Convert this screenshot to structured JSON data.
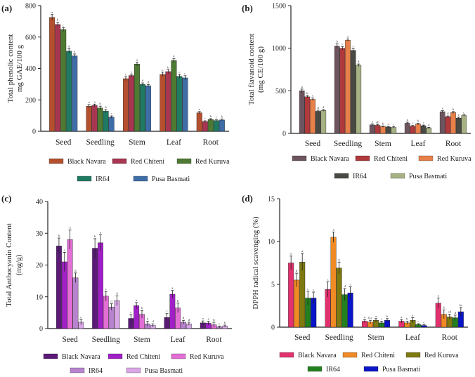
{
  "chart_data": [
    {
      "type": "bar",
      "panel": "(a)",
      "ylabel_lines": [
        "Total phenolic content",
        "mg GAE/100 g"
      ],
      "ylim": [
        0,
        800
      ],
      "yticks": [
        0,
        200,
        400,
        600,
        800
      ],
      "categories": [
        "Seed",
        "Seedling",
        "Stem",
        "Leaf",
        "Root"
      ],
      "series": [
        {
          "name": "Black Navara",
          "color": "#B5502E",
          "values": [
            725,
            160,
            335,
            362,
            118
          ],
          "errors": [
            18,
            10,
            12,
            14,
            8
          ]
        },
        {
          "name": "Red Chiteni",
          "color": "#A83650",
          "values": [
            680,
            165,
            355,
            380,
            62
          ],
          "errors": [
            15,
            8,
            10,
            12,
            5
          ]
        },
        {
          "name": "Red Kuruva",
          "color": "#4E7A33",
          "values": [
            648,
            148,
            428,
            450,
            75
          ],
          "errors": [
            12,
            12,
            12,
            14,
            6
          ]
        },
        {
          "name": "IR64",
          "color": "#1F7A62",
          "values": [
            510,
            128,
            298,
            350,
            68
          ],
          "errors": [
            15,
            10,
            10,
            12,
            5
          ]
        },
        {
          "name": "Pusa Basmati",
          "color": "#3E6DA8",
          "values": [
            480,
            90,
            290,
            340,
            72
          ],
          "errors": [
            12,
            8,
            8,
            14,
            6
          ]
        }
      ],
      "sig": [
        [
          "a",
          "b",
          "c",
          "d",
          "e"
        ],
        [
          "a",
          "a",
          "b",
          "b",
          "c"
        ],
        [
          "c",
          "c",
          "a",
          "d",
          "d"
        ],
        [
          "c",
          "b",
          "a",
          "c",
          "c"
        ],
        [
          "a",
          "c",
          "b",
          "c",
          "b"
        ]
      ]
    },
    {
      "type": "bar",
      "panel": "(b)",
      "ylabel_lines": [
        "Total flavanoid content",
        "(mg CE/100 g)"
      ],
      "ylim": [
        0,
        1500
      ],
      "yticks": [
        0,
        500,
        1000,
        1500
      ],
      "categories": [
        "Seed",
        "Seedling",
        "Stem",
        "Leaf",
        "Root"
      ],
      "series": [
        {
          "name": "Black Navara",
          "color": "#6D5560",
          "values": [
            500,
            1025,
            100,
            120,
            255
          ],
          "errors": [
            20,
            25,
            10,
            12,
            12
          ]
        },
        {
          "name": "Red Chiteni",
          "color": "#B0393C",
          "values": [
            430,
            1000,
            95,
            85,
            195
          ],
          "errors": [
            15,
            20,
            10,
            8,
            10
          ]
        },
        {
          "name": "Red Kuruva",
          "color": "#E8804A",
          "values": [
            400,
            1095,
            80,
            110,
            245
          ],
          "errors": [
            15,
            15,
            8,
            10,
            12
          ]
        },
        {
          "name": "IR64",
          "color": "#4A4A44",
          "values": [
            260,
            975,
            75,
            90,
            180
          ],
          "errors": [
            12,
            18,
            8,
            8,
            10
          ]
        },
        {
          "name": "Pusa Basmati",
          "color": "#A6B284",
          "values": [
            270,
            800,
            70,
            65,
            210
          ],
          "errors": [
            10,
            15,
            8,
            6,
            10
          ]
        }
      ],
      "sig": [
        [
          "a",
          "b",
          "c",
          "d",
          "d"
        ],
        [
          "b",
          "c",
          "a",
          "c",
          "d"
        ],
        [
          "a",
          "ab",
          "b",
          "c",
          "c"
        ],
        [
          "a",
          "c",
          "b",
          "c",
          "d"
        ],
        [
          "a",
          "d",
          "b",
          "e",
          "c"
        ]
      ]
    },
    {
      "type": "bar",
      "panel": "(c)",
      "ylabel_lines": [
        "Total Anthocyanin Content",
        "(mg/g)"
      ],
      "ylim": [
        0,
        40
      ],
      "yticks": [
        0,
        10,
        20,
        30,
        40
      ],
      "categories": [
        "Seed",
        "Seedling",
        "Stem",
        "Leaf",
        "Root"
      ],
      "series": [
        {
          "name": "Black Navara",
          "color": "#5B1A78",
          "values": [
            26,
            25.3,
            3.2,
            3.5,
            1.8
          ],
          "errors": [
            2.5,
            3.0,
            1.2,
            1.2,
            0.6
          ]
        },
        {
          "name": "Red Chiteni",
          "color": "#A11FC6",
          "values": [
            21,
            27,
            7.2,
            10.8,
            1.7
          ],
          "errors": [
            3.0,
            2.5,
            1.0,
            1.2,
            0.6
          ]
        },
        {
          "name": "Red Kuruva",
          "color": "#E36ED5",
          "values": [
            28,
            10.2,
            4.5,
            6.5,
            1.2
          ],
          "errors": [
            3.0,
            1.5,
            1.2,
            1.5,
            0.8
          ]
        },
        {
          "name": "IR64",
          "color": "#B783CE",
          "values": [
            16,
            6.8,
            1.5,
            2.0,
            0.5
          ],
          "errors": [
            1.5,
            1.0,
            0.8,
            0.6,
            0.3
          ]
        },
        {
          "name": "Pusa Basmati",
          "color": "#D9A6E6",
          "values": [
            2.0,
            8.8,
            1.0,
            1.5,
            0.8
          ],
          "errors": [
            0.8,
            1.5,
            0.5,
            0.5,
            0.3
          ]
        }
      ],
      "sig": [
        [
          "b",
          "c",
          "a",
          "d",
          "e"
        ],
        [
          "b",
          "a",
          "c",
          "d",
          "d"
        ],
        [
          "c",
          "a",
          "b",
          "d",
          "d"
        ],
        [
          "c",
          "a",
          "b",
          "d",
          "d"
        ],
        [
          "a",
          "a",
          "b",
          "c",
          "b"
        ]
      ]
    },
    {
      "type": "bar",
      "panel": "(d)",
      "ylabel_lines": [
        "DPPH radical scavenging (%)"
      ],
      "ylim": [
        0,
        15
      ],
      "yticks": [
        0,
        5,
        10,
        15
      ],
      "categories": [
        "Seed",
        "Seedling",
        "Stem",
        "Leaf",
        "Root"
      ],
      "series": [
        {
          "name": "Black Navara",
          "color": "#E2316E",
          "values": [
            7.5,
            4.4,
            0.7,
            0.7,
            2.8
          ],
          "errors": [
            0.8,
            0.9,
            0.2,
            0.2,
            0.6
          ]
        },
        {
          "name": "Red Chiteni",
          "color": "#F08A24",
          "values": [
            5.5,
            10.5,
            0.6,
            0.5,
            1.5
          ],
          "errors": [
            0.8,
            0.6,
            0.2,
            0.2,
            0.5
          ]
        },
        {
          "name": "Red Kuruva",
          "color": "#7E7A10",
          "values": [
            7.6,
            6.9,
            0.8,
            0.8,
            1.2
          ],
          "errors": [
            1.0,
            0.7,
            0.2,
            0.3,
            0.3
          ]
        },
        {
          "name": "IR64",
          "color": "#23801E",
          "values": [
            3.4,
            3.8,
            0.5,
            0.3,
            1.1
          ],
          "errors": [
            0.8,
            0.7,
            0.2,
            0.1,
            0.3
          ]
        },
        {
          "name": "Pusa Basmati",
          "color": "#0A14C8",
          "values": [
            3.4,
            4.0,
            0.8,
            0.2,
            1.8
          ],
          "errors": [
            0.7,
            0.7,
            0.2,
            0.1,
            0.5
          ]
        }
      ],
      "sig": [
        [
          "a",
          "b",
          "a",
          "c",
          "c"
        ],
        [
          "c",
          "a",
          "b",
          "d",
          "c"
        ],
        [
          "a",
          "b,c",
          "a",
          "c",
          "b"
        ],
        [
          "a",
          "b",
          "a",
          "c",
          "c"
        ],
        [
          "a",
          "b",
          "cd",
          "d",
          "bc"
        ]
      ]
    }
  ]
}
